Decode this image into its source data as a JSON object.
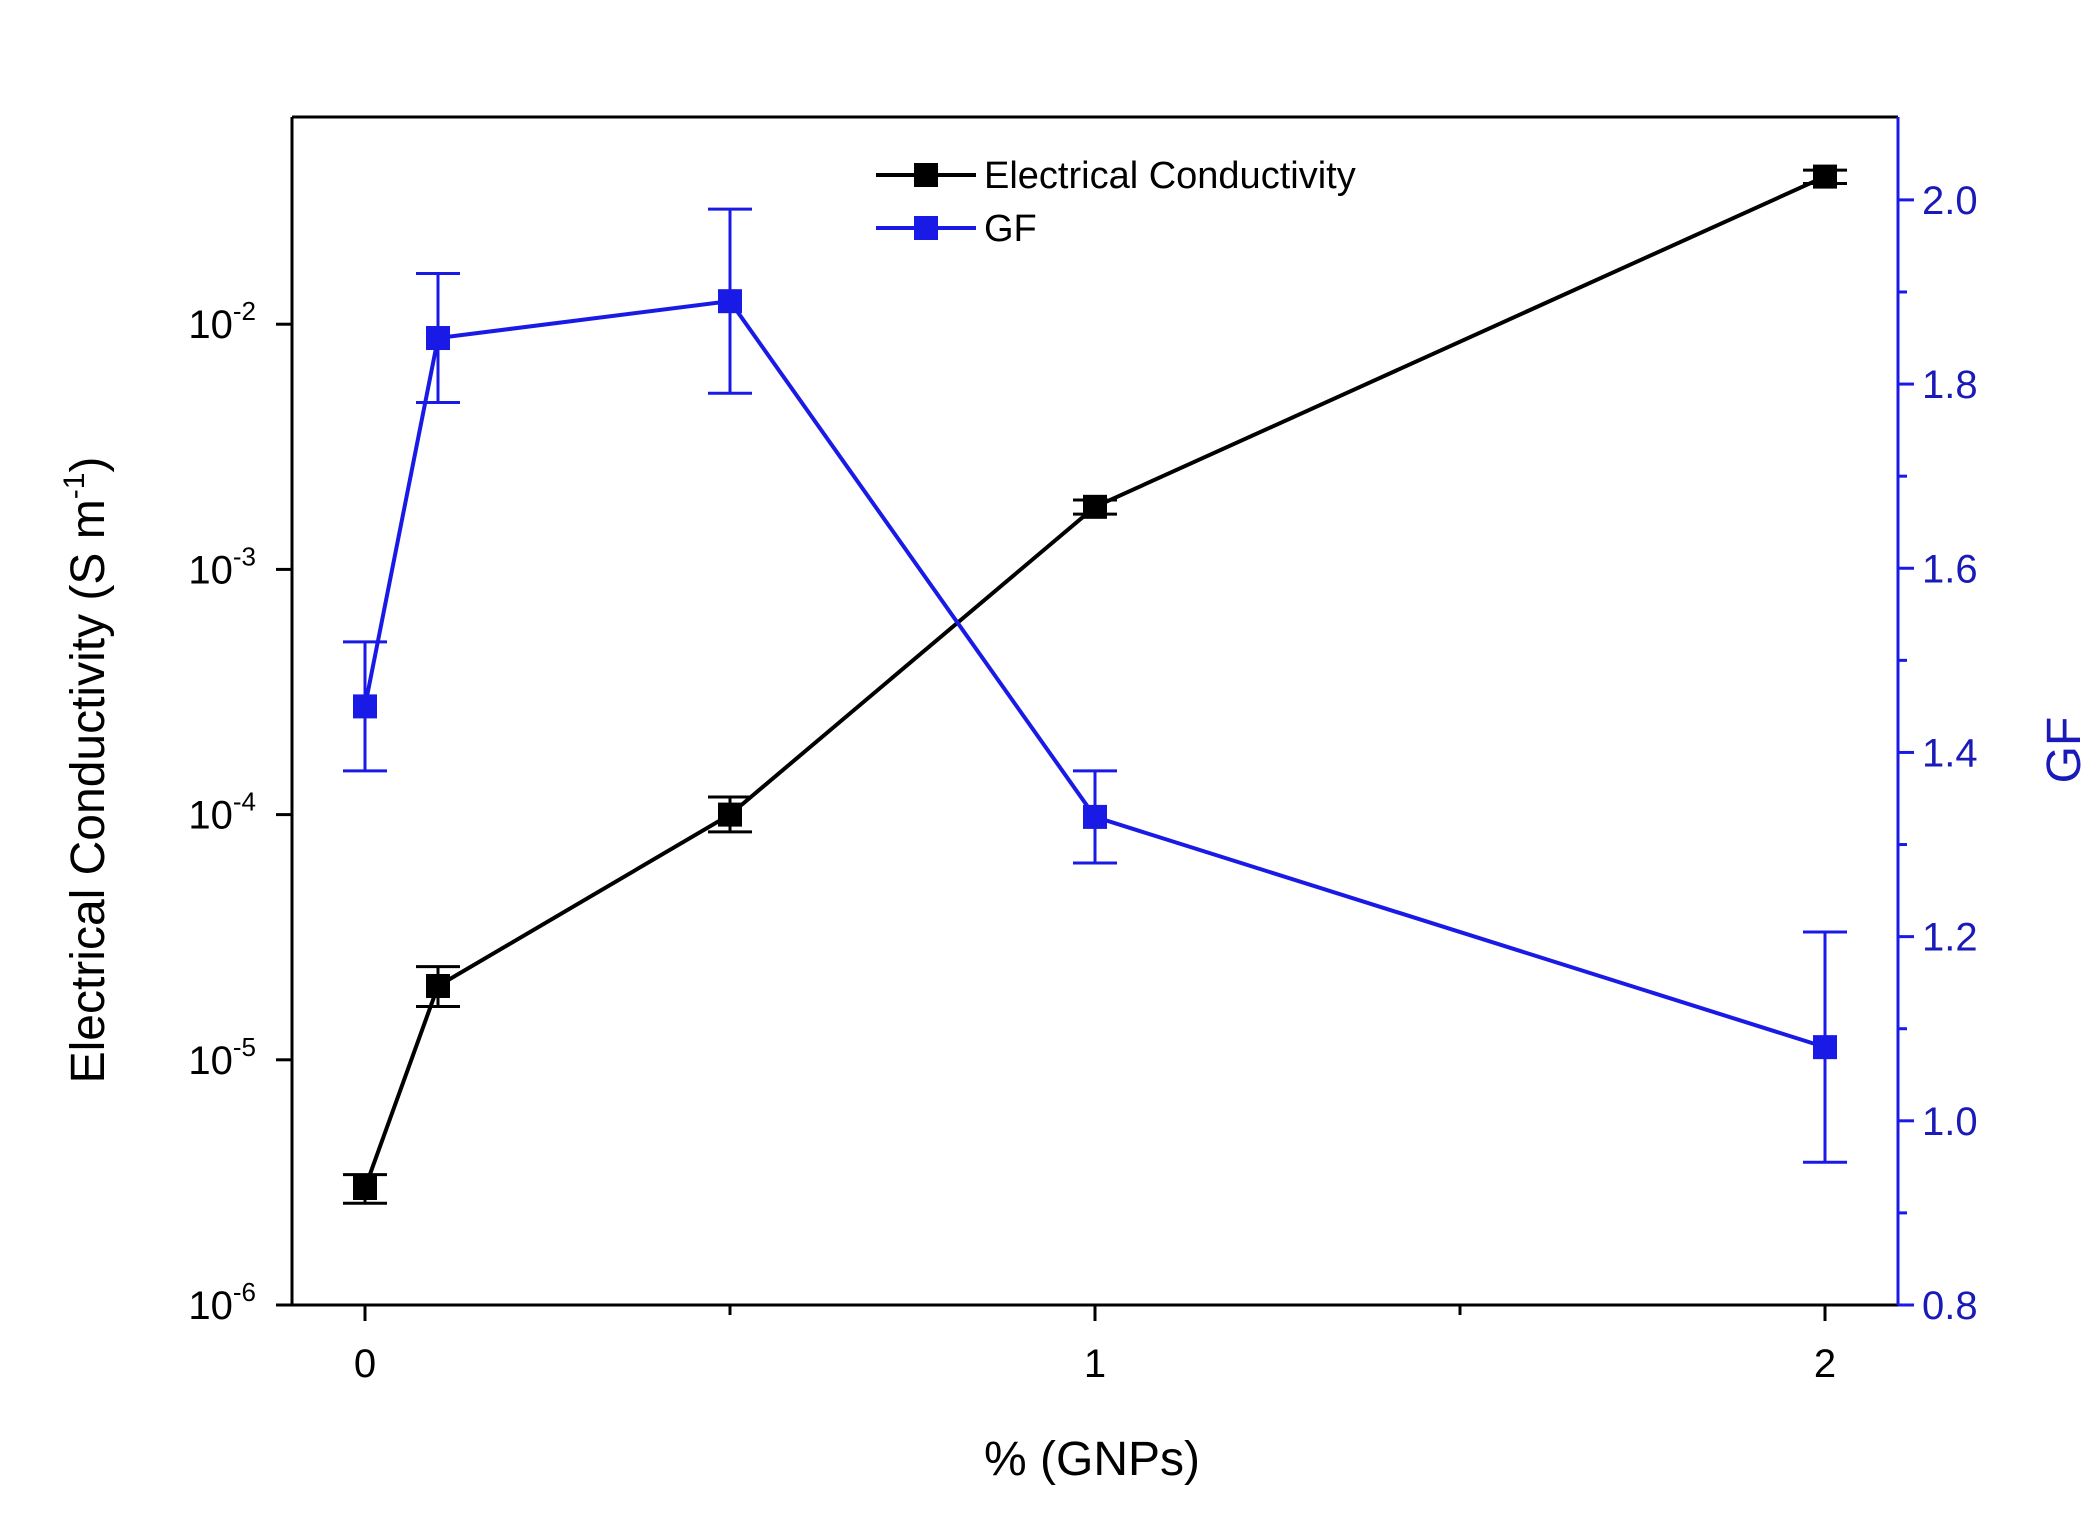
{
  "chart_data": {
    "type": "line",
    "title": "",
    "xlabel": "% (GNPs)",
    "ylabel_left_prefix": "Electrical Conductivity (S m",
    "ylabel_left_exp": "-1",
    "ylabel_left_suffix": ")",
    "ylabel_right": "GF",
    "xlim": [
      -0.1,
      2.1
    ],
    "x_ticks": [
      0,
      1,
      2
    ],
    "x_tick_labels": [
      "0",
      "1",
      "2"
    ],
    "y_left_scale": "log",
    "y_left_lim": [
      1e-06,
      0.07
    ],
    "y_left_tick_exps": [
      "-6",
      "-5",
      "-4",
      "-3",
      "-2"
    ],
    "y_left_tick_base": "10",
    "y_right_lim": [
      0.8,
      2.09
    ],
    "y_right_ticks": [
      0.8,
      1.0,
      1.2,
      1.4,
      1.6,
      1.8,
      2.0
    ],
    "y_right_tick_labels": [
      "0.8",
      "1.0",
      "1.2",
      "1.4",
      "1.6",
      "1.8",
      "2.0"
    ],
    "series": [
      {
        "name": "Electrical Conductivity",
        "axis": "left",
        "color": "#000000",
        "x": [
          0,
          0.1,
          0.5,
          1,
          2
        ],
        "y": [
          3e-06,
          2e-05,
          0.0001,
          0.0018,
          0.04
        ],
        "y_err_low": [
          2.6e-06,
          1.65e-05,
          8.5e-05,
          0.00168,
          0.0375
        ],
        "y_err_high": [
          3.4e-06,
          2.4e-05,
          0.000118,
          0.00192,
          0.0425
        ]
      },
      {
        "name": "GF",
        "axis": "right",
        "color": "#1a1ae6",
        "x": [
          0,
          0.1,
          0.5,
          1,
          2
        ],
        "y": [
          1.45,
          1.85,
          1.89,
          1.33,
          1.08
        ],
        "y_err": [
          0.07,
          0.07,
          0.1,
          0.05,
          0.125
        ]
      }
    ],
    "legend": [
      "Electrical Conductivity",
      "GF"
    ],
    "legend_position": "top-center",
    "grid": false
  }
}
